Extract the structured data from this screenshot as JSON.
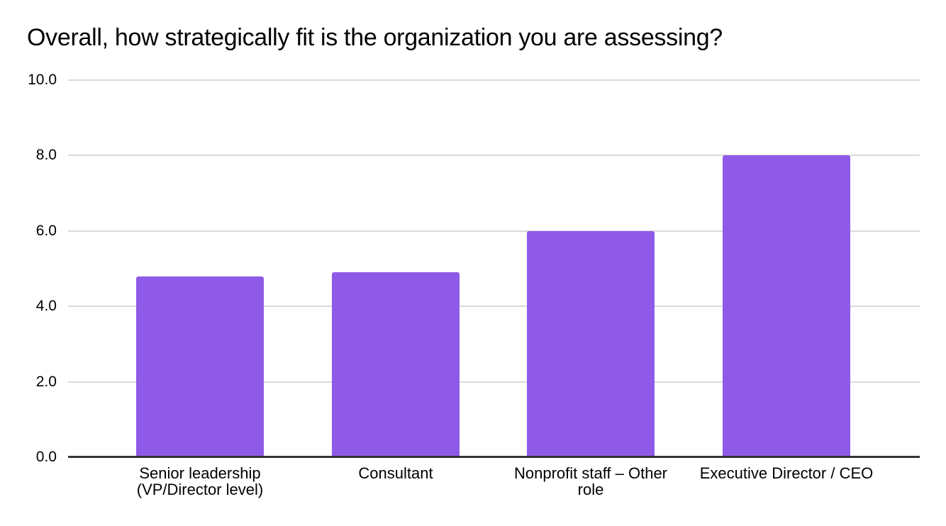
{
  "header": {
    "title": "Overall, how strategically fit is the organization you are assessing?"
  },
  "colors": {
    "bar": "#8F5AE8",
    "gridline": "#d9d9d9",
    "axis_line": "#333333",
    "text": "#000000",
    "background": "#ffffff"
  },
  "chart_data": {
    "type": "bar",
    "title": "Overall, how strategically fit is the organization you are assessing?",
    "categories": [
      "Senior leadership (VP/Director level)",
      "Consultant",
      "Nonprofit staff – Other role",
      "Executive Director / CEO"
    ],
    "values": [
      4.8,
      4.9,
      6.0,
      8.0
    ],
    "xlabel": "",
    "ylabel": "",
    "ylim": [
      0,
      10
    ],
    "ytick_values": [
      0,
      2,
      4,
      6,
      8,
      10
    ],
    "ytick_labels": [
      "0.0",
      "2.0",
      "4.0",
      "6.0",
      "8.0",
      "10.0"
    ],
    "grid": true,
    "legend": "none",
    "bar_color": "#8F5AE8"
  }
}
